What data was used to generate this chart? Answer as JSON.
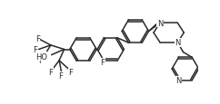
{
  "bg_color": "#ffffff",
  "line_color": "#2a2a2a",
  "line_width": 1.1,
  "font_size": 6.0,
  "figsize": [
    2.42,
    1.16
  ],
  "dpi": 100,
  "xlim": [
    0,
    242
  ],
  "ylim": [
    0,
    116
  ]
}
